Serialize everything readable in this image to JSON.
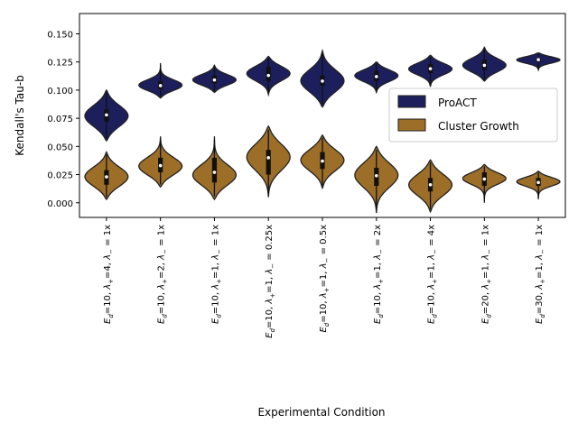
{
  "chart_data": {
    "type": "violin",
    "xlabel": "Experimental Condition",
    "ylabel": "Kendall's Tau-b",
    "ylim": [
      -0.013,
      0.168
    ],
    "yticks": [
      0.0,
      0.025,
      0.05,
      0.075,
      0.1,
      0.125,
      0.15
    ],
    "ytick_labels": [
      "0.000",
      "0.025",
      "0.050",
      "0.075",
      "0.100",
      "0.125",
      "0.150"
    ],
    "categories": [
      "E_d=10, λ+=4, λ−=1x",
      "E_d=10, λ+=2, λ−=1x",
      "E_d=10, λ+=1, λ−=1x",
      "E_d=10, λ+=1, λ−=0.25x",
      "E_d=10, λ+=1, λ−=0.5x",
      "E_d=10, λ+=1, λ−=2x",
      "E_d=10, λ+=1, λ−=4x",
      "E_d=20, λ+=1, λ−=1x",
      "E_d=30, λ+=1, λ−=1x"
    ],
    "category_labels": [
      {
        "e": "10",
        "lp": "4",
        "lm": "1x"
      },
      {
        "e": "10",
        "lp": "2",
        "lm": "1x"
      },
      {
        "e": "10",
        "lp": "1",
        "lm": "1x"
      },
      {
        "e": "10",
        "lp": "1",
        "lm": "0.25x"
      },
      {
        "e": "10",
        "lp": "1",
        "lm": "0.5x"
      },
      {
        "e": "10",
        "lp": "1",
        "lm": "2x"
      },
      {
        "e": "10",
        "lp": "1",
        "lm": "4x"
      },
      {
        "e": "20",
        "lp": "1",
        "lm": "1x"
      },
      {
        "e": "30",
        "lp": "1",
        "lm": "1x"
      }
    ],
    "legend": {
      "position": "center-right"
    },
    "grid": false,
    "series": [
      {
        "name": "ProACT",
        "color": "#1c1f5c",
        "violins": [
          {
            "min": 0.055,
            "max": 0.1,
            "median": 0.078,
            "q1": 0.072,
            "q3": 0.083,
            "mode": 0.077
          },
          {
            "min": 0.093,
            "max": 0.124,
            "median": 0.104,
            "q1": 0.101,
            "q3": 0.108,
            "mode": 0.104
          },
          {
            "min": 0.098,
            "max": 0.122,
            "median": 0.109,
            "q1": 0.106,
            "q3": 0.113,
            "mode": 0.109
          },
          {
            "min": 0.096,
            "max": 0.13,
            "median": 0.113,
            "q1": 0.108,
            "q3": 0.121,
            "mode": 0.115
          },
          {
            "min": 0.085,
            "max": 0.135,
            "median": 0.108,
            "q1": 0.104,
            "q3": 0.113,
            "mode": 0.108
          },
          {
            "min": 0.098,
            "max": 0.125,
            "median": 0.112,
            "q1": 0.108,
            "q3": 0.117,
            "mode": 0.113
          },
          {
            "min": 0.103,
            "max": 0.131,
            "median": 0.119,
            "q1": 0.115,
            "q3": 0.123,
            "mode": 0.119
          },
          {
            "min": 0.108,
            "max": 0.138,
            "median": 0.122,
            "q1": 0.118,
            "q3": 0.127,
            "mode": 0.122
          },
          {
            "min": 0.118,
            "max": 0.133,
            "median": 0.127,
            "q1": 0.125,
            "q3": 0.128,
            "mode": 0.127
          }
        ]
      },
      {
        "name": "Cluster Growth",
        "color": "#9c6e27",
        "violins": [
          {
            "min": 0.003,
            "max": 0.045,
            "median": 0.023,
            "q1": 0.016,
            "q3": 0.029,
            "mode": 0.023
          },
          {
            "min": 0.014,
            "max": 0.059,
            "median": 0.033,
            "q1": 0.027,
            "q3": 0.04,
            "mode": 0.032
          },
          {
            "min": 0.003,
            "max": 0.059,
            "median": 0.027,
            "q1": 0.018,
            "q3": 0.04,
            "mode": 0.024
          },
          {
            "min": 0.005,
            "max": 0.068,
            "median": 0.04,
            "q1": 0.025,
            "q3": 0.047,
            "mode": 0.041
          },
          {
            "min": 0.013,
            "max": 0.06,
            "median": 0.037,
            "q1": 0.03,
            "q3": 0.045,
            "mode": 0.038
          },
          {
            "min": -0.009,
            "max": 0.05,
            "median": 0.024,
            "q1": 0.015,
            "q3": 0.031,
            "mode": 0.025
          },
          {
            "min": -0.008,
            "max": 0.038,
            "median": 0.016,
            "q1": 0.01,
            "q3": 0.022,
            "mode": 0.016
          },
          {
            "min": 0.0,
            "max": 0.034,
            "median": 0.021,
            "q1": 0.015,
            "q3": 0.027,
            "mode": 0.022
          },
          {
            "min": 0.003,
            "max": 0.028,
            "median": 0.018,
            "q1": 0.015,
            "q3": 0.022,
            "mode": 0.019
          }
        ]
      }
    ]
  }
}
